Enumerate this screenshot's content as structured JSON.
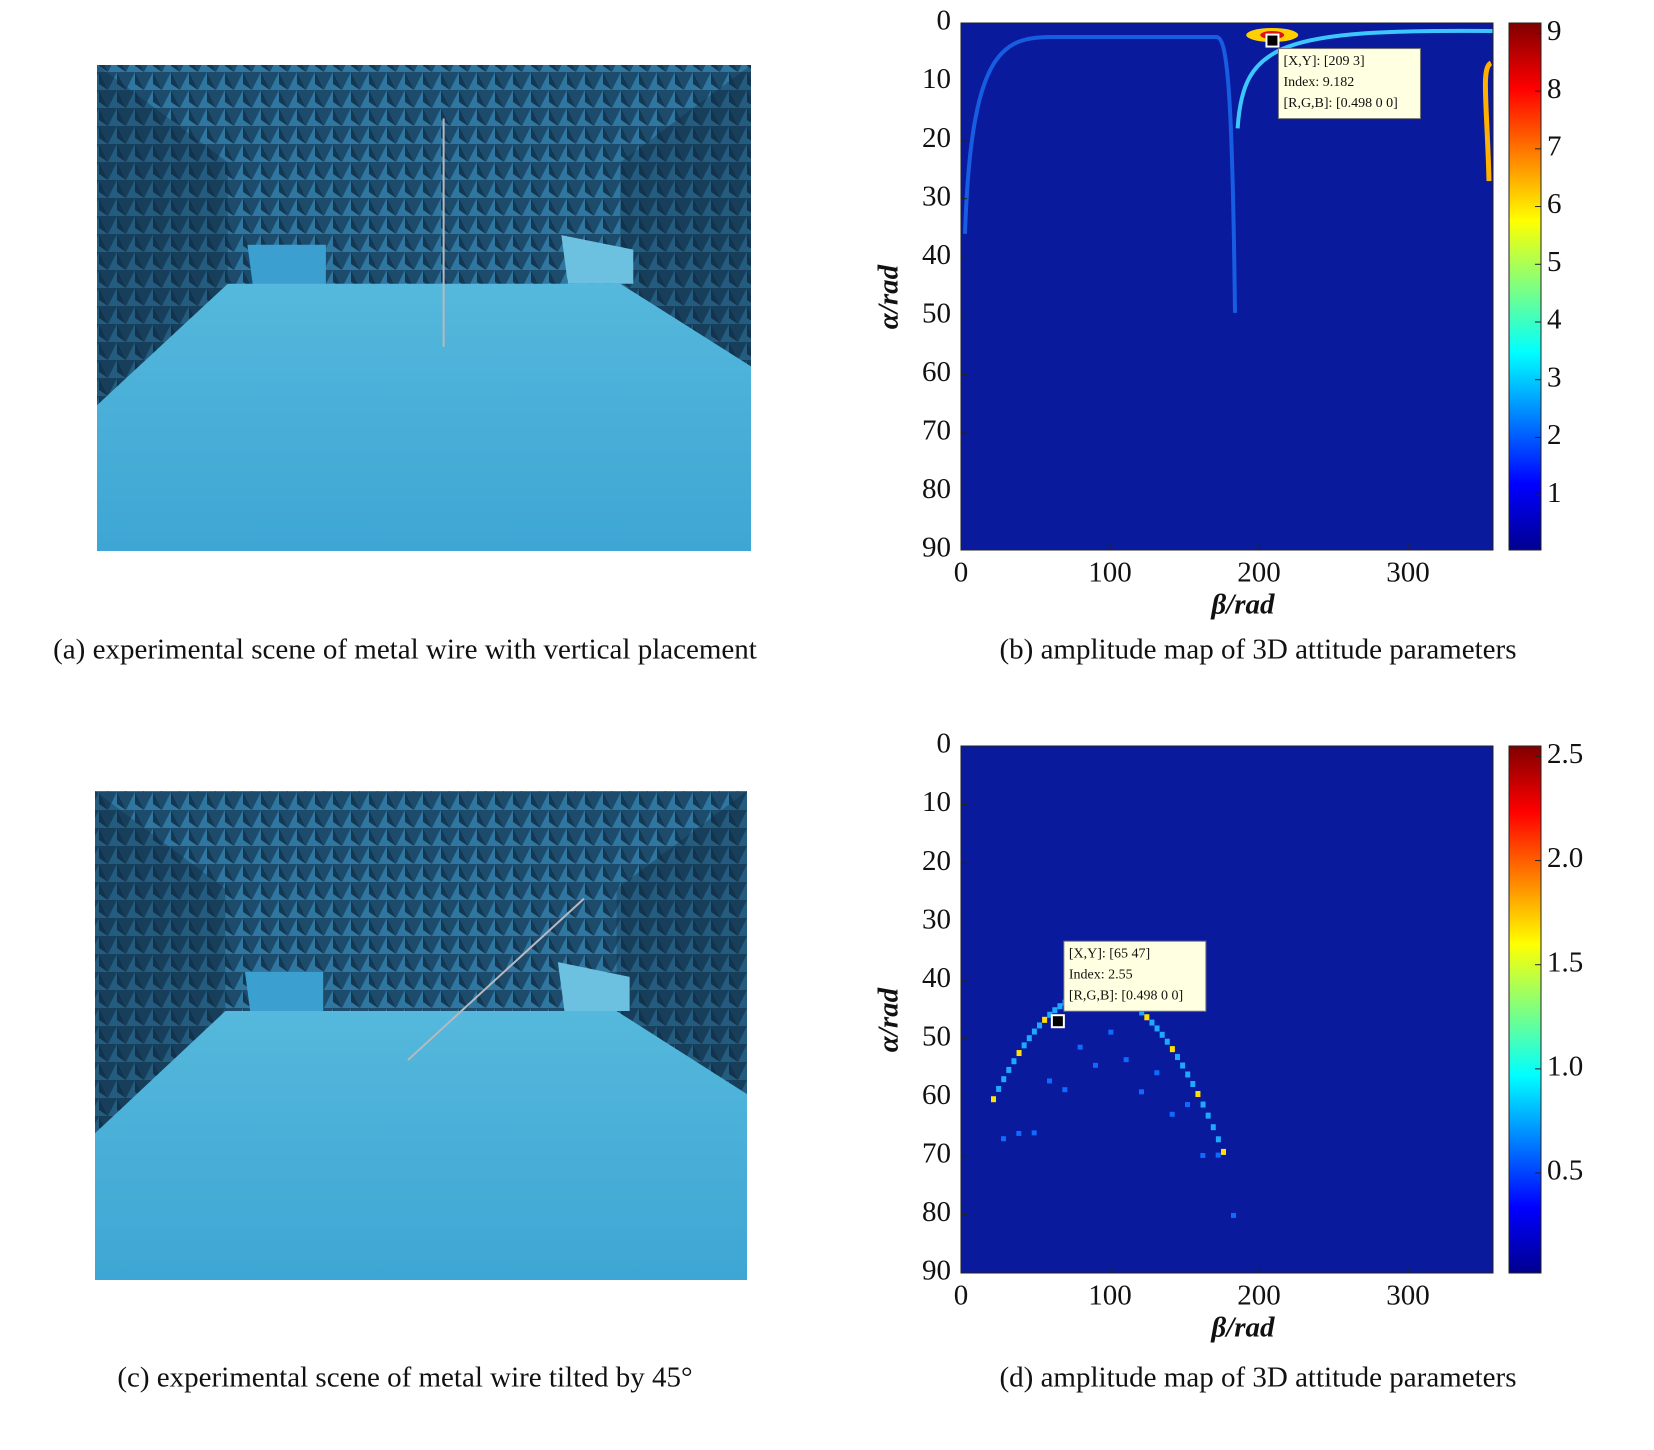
{
  "figure": {
    "panels": [
      {
        "caption": "(a) experimental scene of metal wire with vertical placement"
      },
      {
        "caption": "(b) amplitude map of 3D attitude parameters",
        "chart": {
          "type": "heatmap",
          "xlabel": "β/rad",
          "ylabel": "α/rad",
          "xlim": [
            0,
            357
          ],
          "xticks": [
            0,
            100,
            200,
            300
          ],
          "ylim": [
            0,
            90
          ],
          "yticks": [
            0,
            10,
            20,
            30,
            40,
            50,
            60,
            70,
            80,
            90
          ],
          "yreverse": true,
          "colormap": "jet",
          "clim": [
            0.05,
            9.18
          ],
          "cticks": [
            1,
            2,
            3,
            4,
            5,
            6,
            7,
            8,
            9
          ],
          "datatip": {
            "x": 209,
            "y": 3,
            "lines": [
              "[X,Y]: [209 3]",
              "Index: 9.182",
              "[R,G,B]: [0.498 0 0]"
            ]
          }
        }
      },
      {
        "caption": "(c) experimental scene of metal wire tilted by 45°"
      },
      {
        "caption": "(d) amplitude map of 3D attitude parameters",
        "chart": {
          "type": "heatmap",
          "xlabel": "β/rad",
          "ylabel": "α/rad",
          "xlim": [
            0,
            357
          ],
          "xticks": [
            0,
            100,
            200,
            300
          ],
          "ylim": [
            0,
            90
          ],
          "yticks": [
            0,
            10,
            20,
            30,
            40,
            50,
            60,
            70,
            80,
            90
          ],
          "yreverse": true,
          "colormap": "jet",
          "clim": [
            0.02,
            2.55
          ],
          "cticks": [
            0.5,
            {
              "value": 1.0,
              "label": "1.0"
            },
            1.5,
            {
              "value": 2.0,
              "label": "2.0"
            },
            2.5
          ],
          "datatip": {
            "x": 65,
            "y": 47,
            "lines": [
              "[X,Y]: [65 47]",
              "Index: 2.55",
              "[R,G,B]: [0.498 0 0]"
            ]
          }
        }
      }
    ]
  }
}
